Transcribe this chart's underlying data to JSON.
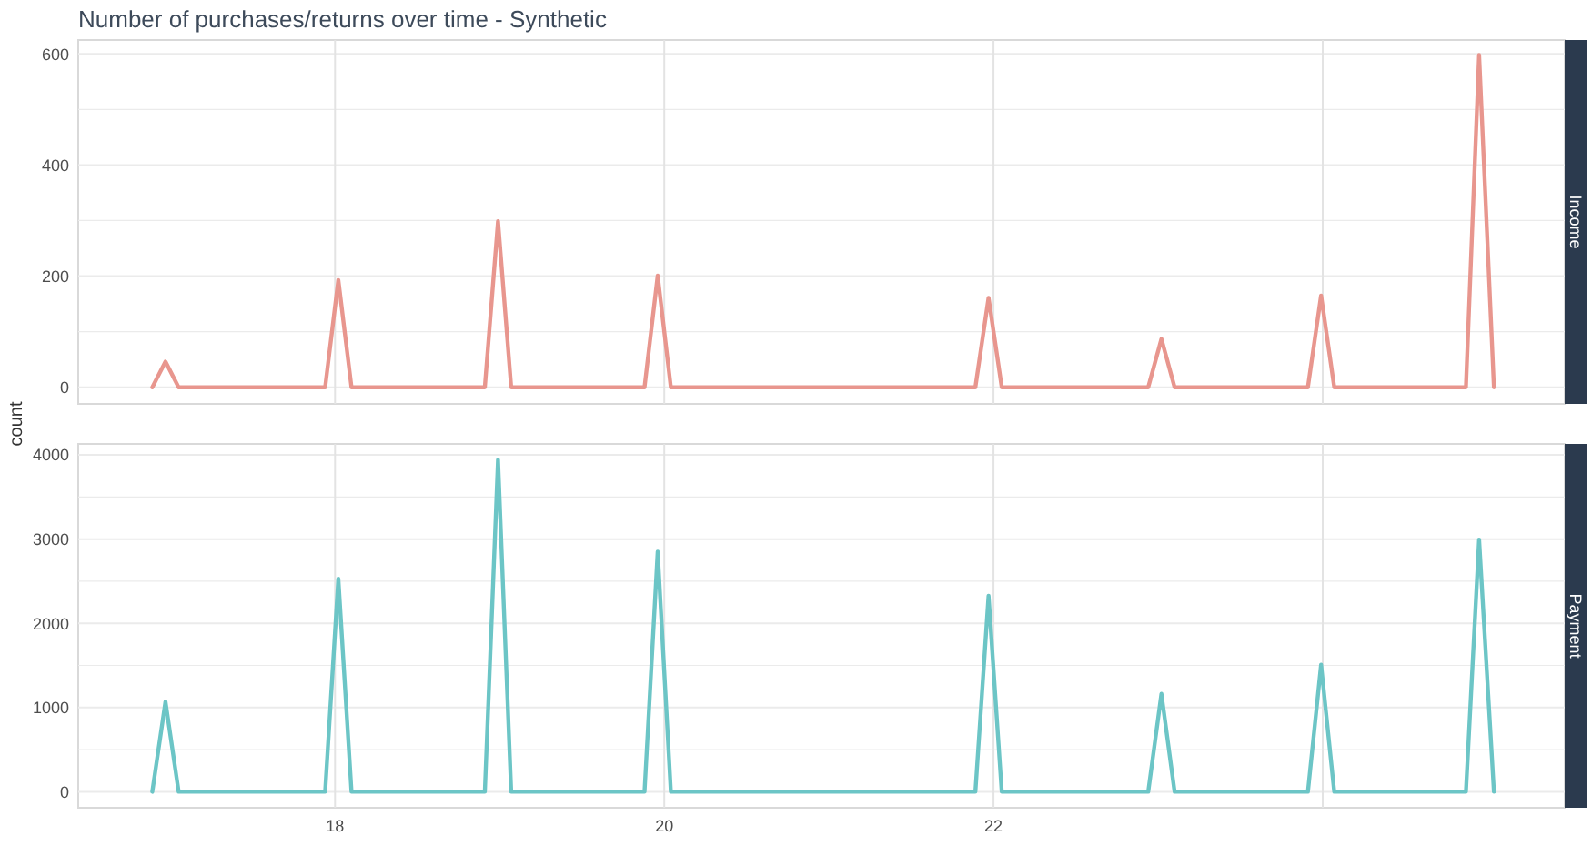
{
  "chart_data": [
    {
      "type": "line",
      "title": "Number of purchases/returns over time - Synthetic",
      "subtitle": "Income",
      "ylabel": "count",
      "x": [
        16.89,
        16.97,
        17.05,
        17.94,
        18.02,
        18.1,
        18.91,
        18.99,
        19.07,
        19.88,
        19.96,
        20.04,
        21.89,
        21.97,
        22.05,
        22.94,
        23.02,
        23.1,
        23.91,
        23.99,
        24.07,
        24.87,
        24.95,
        25.04
      ],
      "series": [
        {
          "color": "#e8968e",
          "values": [
            0,
            46,
            0,
            0,
            193,
            0,
            0,
            299,
            0,
            0,
            201,
            0,
            0,
            161,
            0,
            0,
            87,
            0,
            0,
            165,
            0,
            0,
            598,
            0
          ]
        }
      ],
      "xlim": [
        16.44,
        25.47
      ],
      "ylim": [
        -30,
        625
      ],
      "xticks": [
        18,
        20,
        22,
        {
          "value": 24,
          "label": null
        }
      ],
      "yticks": [
        0,
        {
          "value": 100,
          "label": null
        },
        200,
        {
          "value": 300,
          "label": null
        },
        400,
        {
          "value": 500,
          "label": null
        },
        600
      ],
      "grid": true,
      "tick_labels": "y"
    },
    {
      "type": "line",
      "subtitle": "Payment",
      "x": [
        16.89,
        16.97,
        17.05,
        17.94,
        18.02,
        18.1,
        18.91,
        18.99,
        19.07,
        19.88,
        19.96,
        20.04,
        21.89,
        21.97,
        22.05,
        22.94,
        23.02,
        23.1,
        23.91,
        23.99,
        24.07,
        24.87,
        24.95,
        25.04
      ],
      "series": [
        {
          "color": "#6cc5c6",
          "values": [
            0,
            1071,
            0,
            0,
            2529,
            0,
            0,
            3942,
            0,
            0,
            2852,
            0,
            0,
            2327,
            0,
            0,
            1163,
            0,
            0,
            1508,
            0,
            0,
            2994,
            0
          ]
        }
      ],
      "xlim": [
        16.44,
        25.47
      ],
      "ylim": [
        -190,
        4130
      ],
      "xticks": [
        18,
        20,
        22,
        {
          "value": 24,
          "label": null
        }
      ],
      "yticks": [
        0,
        {
          "value": 500,
          "label": null
        },
        1000,
        {
          "value": 1500,
          "label": null
        },
        2000,
        {
          "value": 2500,
          "label": null
        },
        3000,
        {
          "value": 3500,
          "label": null
        },
        4000
      ],
      "grid": true
    }
  ]
}
